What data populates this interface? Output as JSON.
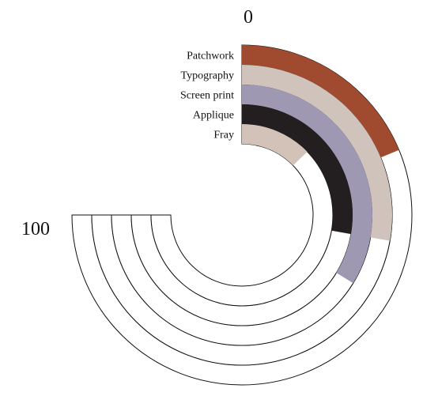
{
  "chart_data": {
    "type": "bar",
    "title": "",
    "xlabel": "",
    "ylabel": "",
    "ylim": [
      0,
      100
    ],
    "categories": [
      "Patchwork",
      "Typography",
      "Screen print",
      "Applique",
      "Fray"
    ],
    "values": [
      25,
      37,
      45,
      37,
      17
    ],
    "colors": [
      "#a04a30",
      "#cfc3bb",
      "#9f98b3",
      "#231f20",
      "#d2c2b8"
    ],
    "tick_labels": {
      "start": "0",
      "end": "100"
    }
  }
}
